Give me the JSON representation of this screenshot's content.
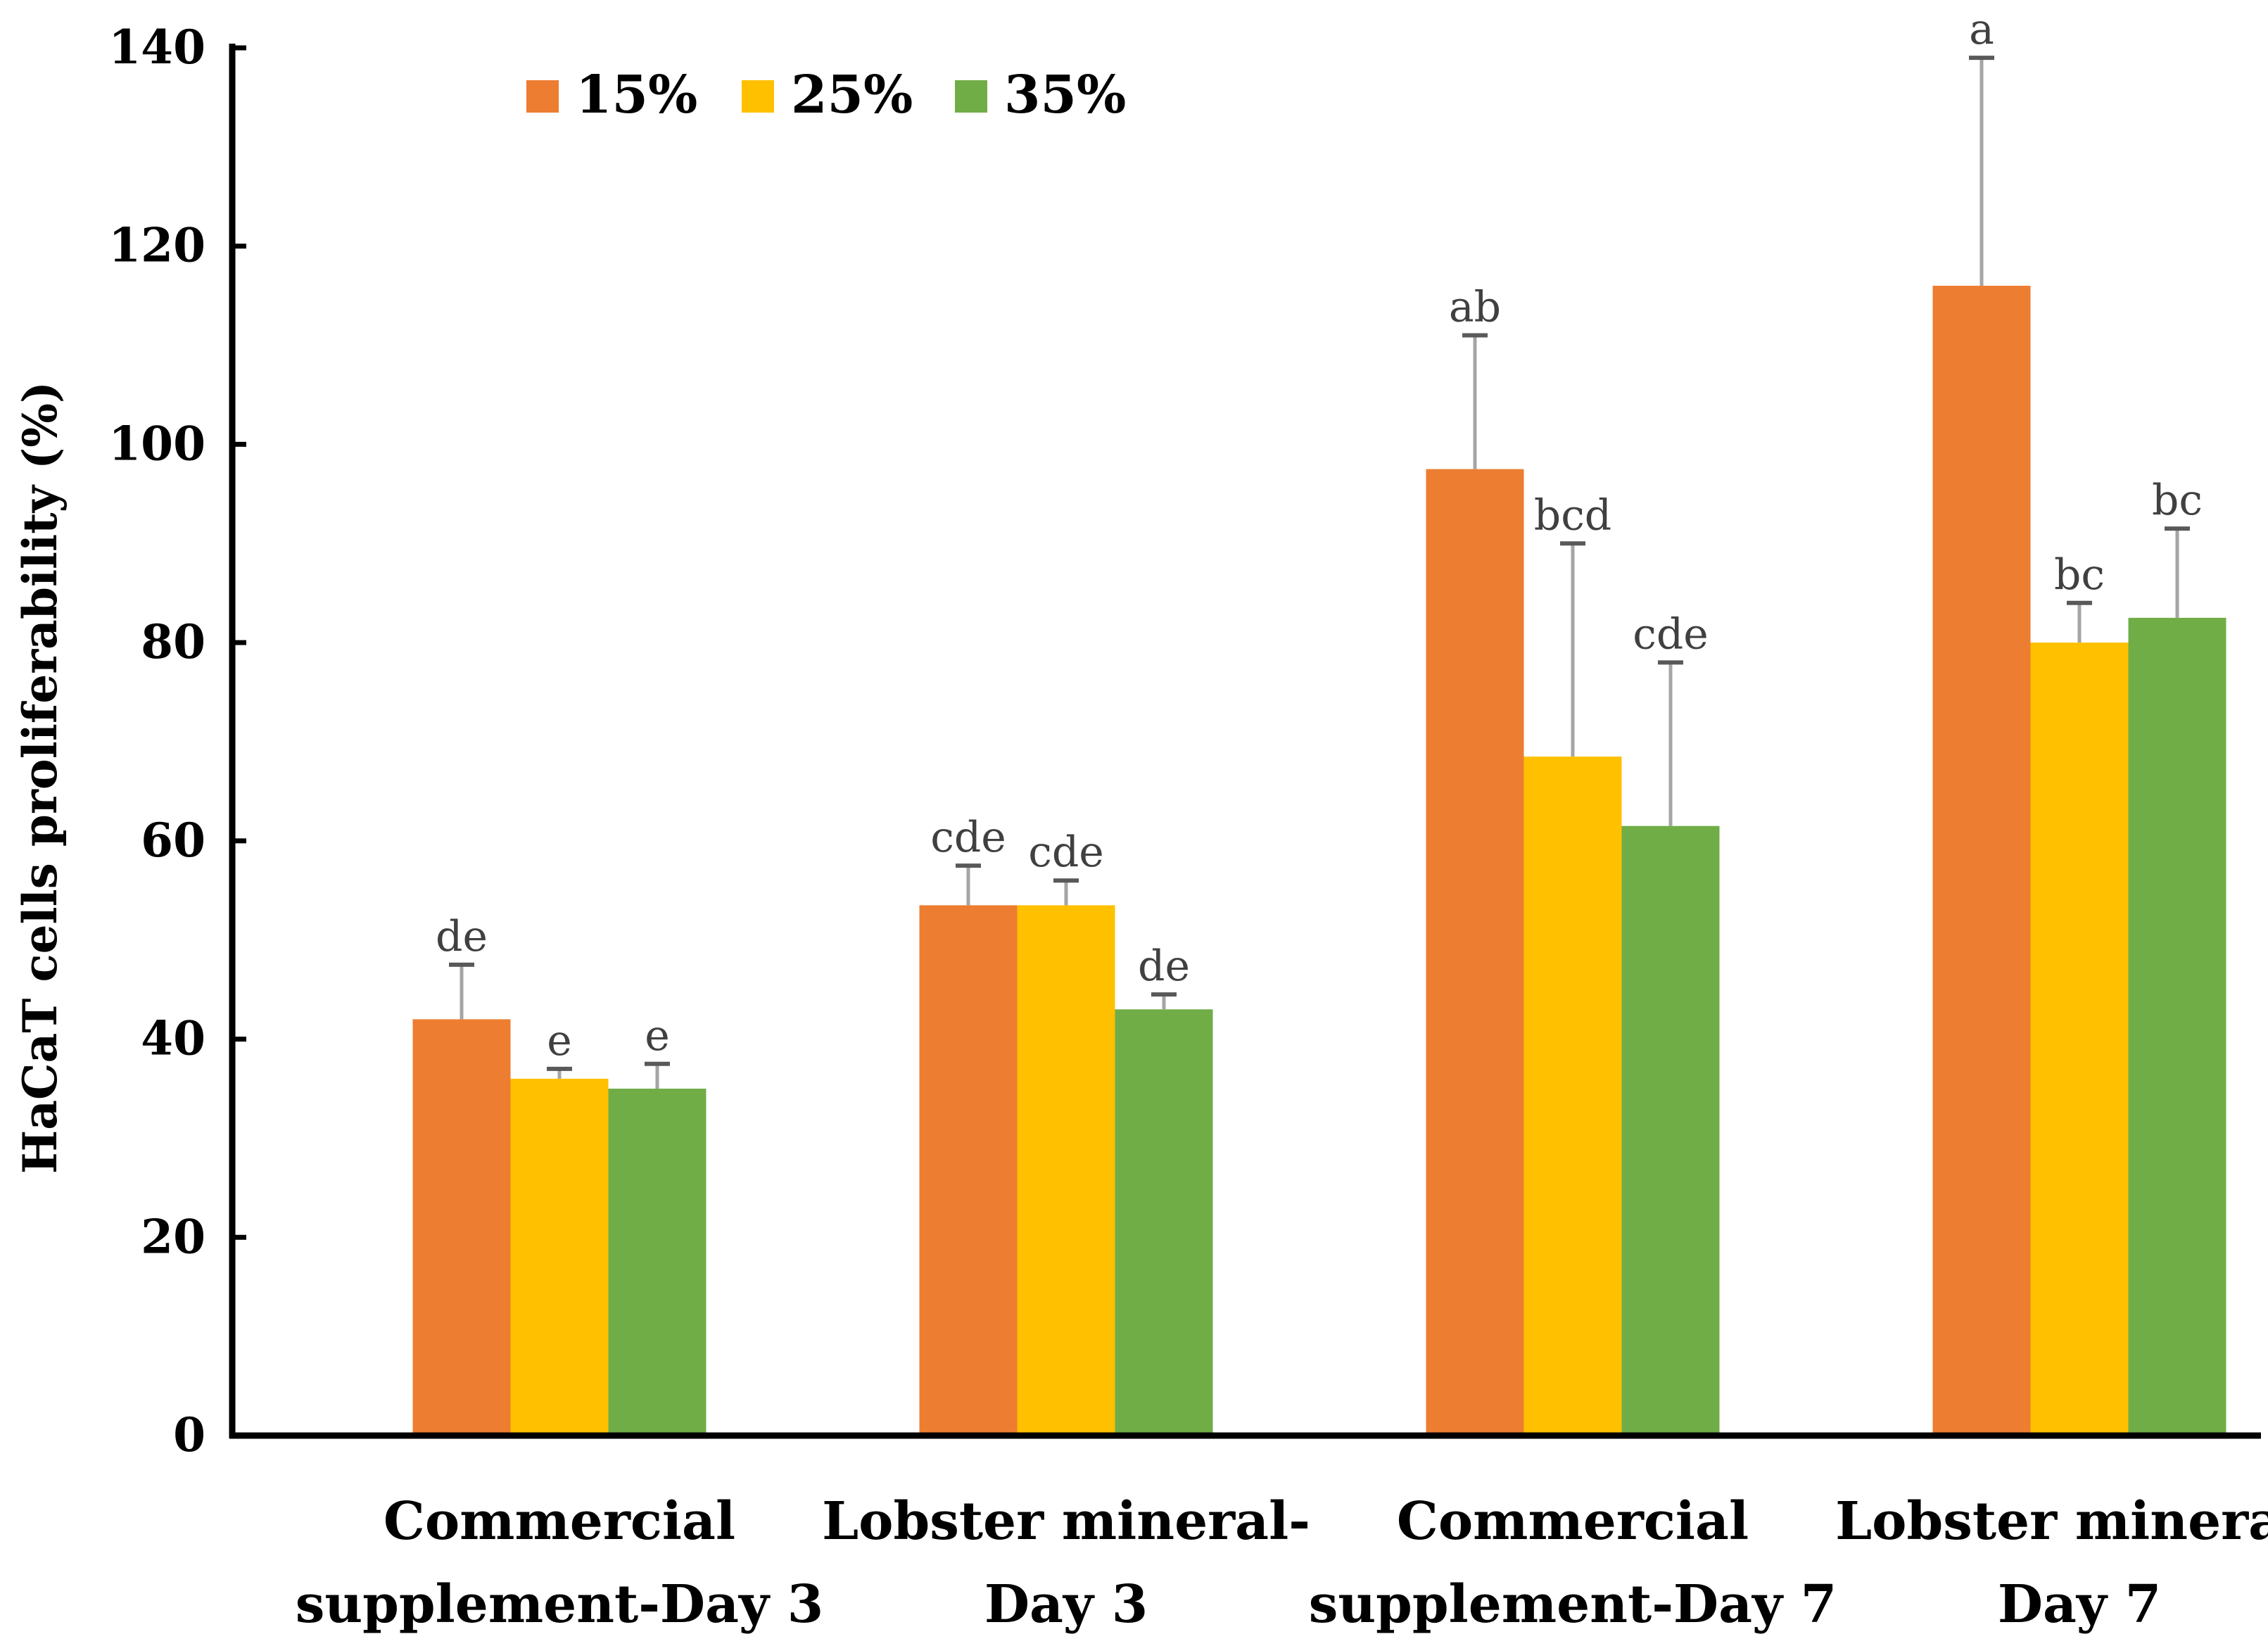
{
  "chart_data": {
    "type": "bar",
    "title": "",
    "xlabel": "",
    "ylabel": "HaCaT cells proliferability (%)",
    "ylim": [
      0,
      140
    ],
    "yticks": [
      0,
      20,
      40,
      60,
      80,
      100,
      120,
      140
    ],
    "grid": false,
    "legend_position": "top-left",
    "categories": [
      [
        "Commercial",
        "supplement-Day 3"
      ],
      [
        "Lobster mineral-",
        "Day 3"
      ],
      [
        "Commercial",
        "supplement-Day 7"
      ],
      [
        "Lobster mineral-",
        "Day 7"
      ]
    ],
    "series": [
      {
        "name": "15%",
        "color": "#ED7D31",
        "values": [
          42,
          53.5,
          97.5,
          116
        ],
        "errors": [
          5.5,
          4,
          13.5,
          23
        ],
        "labels": [
          "de",
          "cde",
          "ab",
          "a"
        ]
      },
      {
        "name": "25%",
        "color": "#FFC000",
        "values": [
          36,
          53.5,
          68.5,
          80
        ],
        "errors": [
          1,
          2.5,
          21.5,
          4
        ],
        "labels": [
          "e",
          "cde",
          "bcd",
          "bc"
        ]
      },
      {
        "name": "35%",
        "color": "#70AD47",
        "values": [
          35,
          43,
          61.5,
          82.5
        ],
        "errors": [
          2.5,
          1.5,
          16.5,
          9
        ],
        "labels": [
          "e",
          "de",
          "cde",
          "bc"
        ]
      }
    ]
  }
}
